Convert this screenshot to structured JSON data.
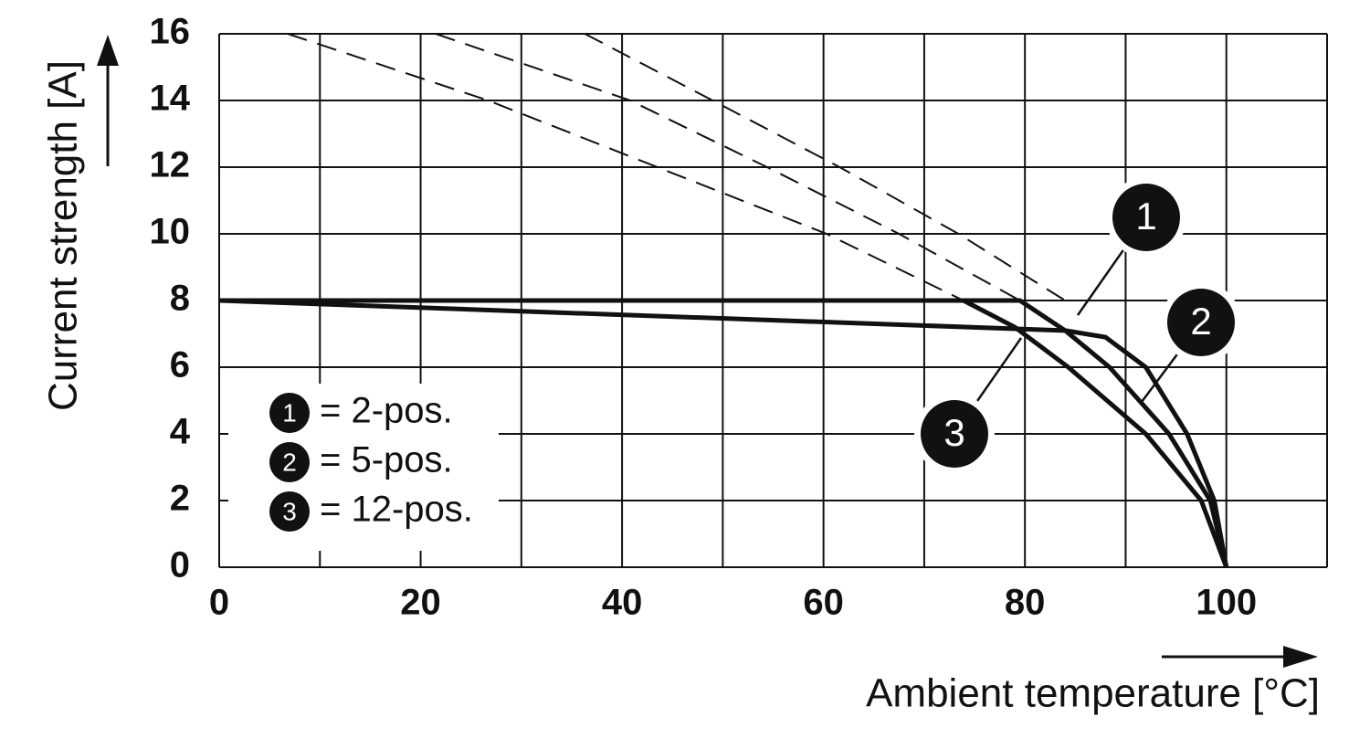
{
  "chart_data": {
    "type": "line",
    "x_label": "Ambient temperature [°C]",
    "y_label": "Current strength [A]",
    "xlim": [
      0,
      110
    ],
    "ylim": [
      0,
      16
    ],
    "xticks": [
      0,
      20,
      40,
      60,
      80,
      100
    ],
    "xgrid": [
      0,
      10,
      20,
      30,
      40,
      50,
      60,
      70,
      80,
      90,
      100,
      110
    ],
    "yticks": [
      0,
      2,
      4,
      6,
      8,
      10,
      12,
      14,
      16
    ],
    "grid": true,
    "legend": "lower left",
    "series": [
      {
        "name": "= 2-pos.",
        "label": "1",
        "color": "#111111",
        "dashed": false,
        "x": [
          0,
          84,
          88,
          92,
          96.1,
          98.8,
          100
        ],
        "values": [
          8,
          7.1,
          6.9,
          6,
          4,
          2,
          0
        ]
      },
      {
        "name": "= 5-pos.",
        "label": "2",
        "color": "#111111",
        "dashed": false,
        "x": [
          0,
          79.5,
          84,
          88.4,
          94.3,
          98.4,
          100
        ],
        "values": [
          8,
          8,
          7.1,
          6,
          4,
          2,
          0
        ]
      },
      {
        "name": "= 12-pos.",
        "label": "3",
        "color": "#111111",
        "dashed": false,
        "x": [
          0,
          73.9,
          79,
          84.3,
          92,
          97.5,
          100
        ],
        "values": [
          8,
          8,
          7.2,
          6,
          4,
          2,
          0
        ]
      },
      {
        "color": "#111111",
        "dashed": true,
        "x": [
          36.3,
          49,
          61.6,
          73.4,
          84
        ],
        "values": [
          16,
          14,
          12,
          10,
          8
        ]
      },
      {
        "color": "#111111",
        "dashed": true,
        "x": [
          21.5,
          40.8,
          54.4,
          67.5,
          79.5
        ],
        "values": [
          16,
          14,
          12,
          10,
          8
        ]
      },
      {
        "color": "#111111",
        "dashed": true,
        "x": [
          6.8,
          26.7,
          43.5,
          60.3,
          73.9
        ],
        "values": [
          16,
          14,
          12,
          10,
          8
        ]
      }
    ]
  }
}
